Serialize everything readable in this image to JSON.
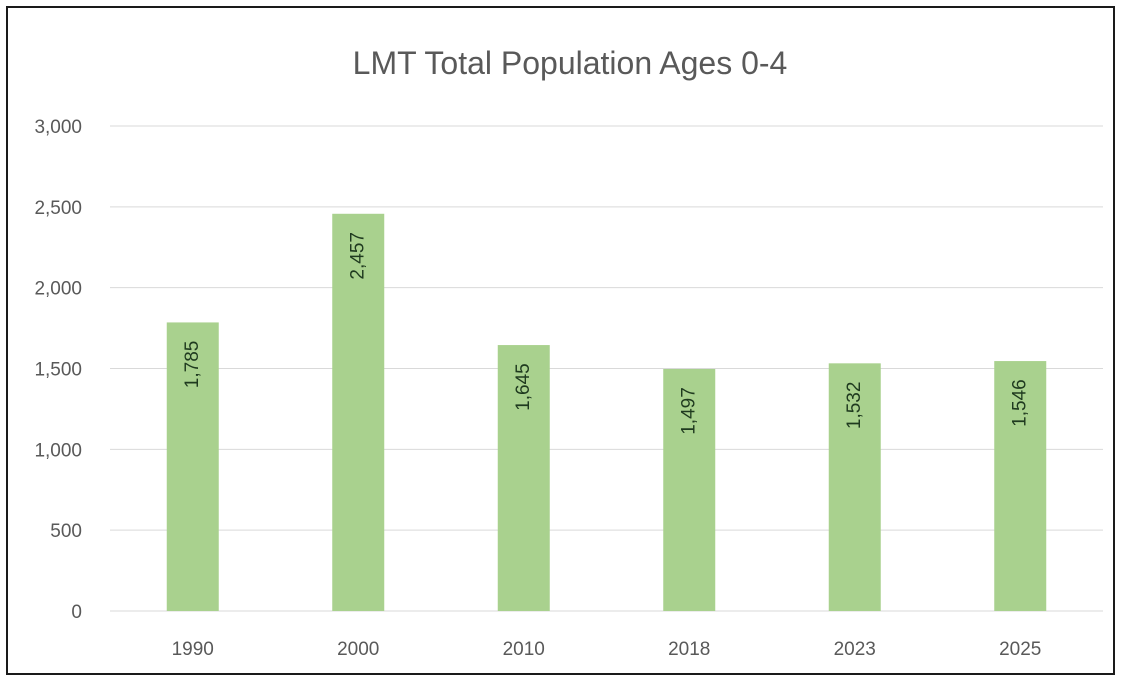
{
  "chart_data": {
    "type": "bar",
    "title": "LMT Total Population Ages 0-4",
    "xlabel": "",
    "ylabel": "",
    "categories": [
      "1990",
      "2000",
      "2010",
      "2018",
      "2023",
      "2025"
    ],
    "values": [
      1785,
      2457,
      1645,
      1497,
      1532,
      1546
    ],
    "data_labels": [
      "1,785",
      "2,457",
      "1,645",
      "1,497",
      "1,532",
      "1,546"
    ],
    "ylim": [
      0,
      3000
    ],
    "yticks": [
      0,
      500,
      1000,
      1500,
      2000,
      2500,
      3000
    ],
    "ytick_labels": [
      "0",
      "500",
      "1,000",
      "1,500",
      "2,000",
      "2,500",
      "3,000"
    ],
    "grid": true,
    "legend": "none",
    "data_label_orientation": "rotated-vertical",
    "colors": {
      "bar": "#a9d18e",
      "grid": "#d9d9d9",
      "text": "#595959"
    }
  }
}
